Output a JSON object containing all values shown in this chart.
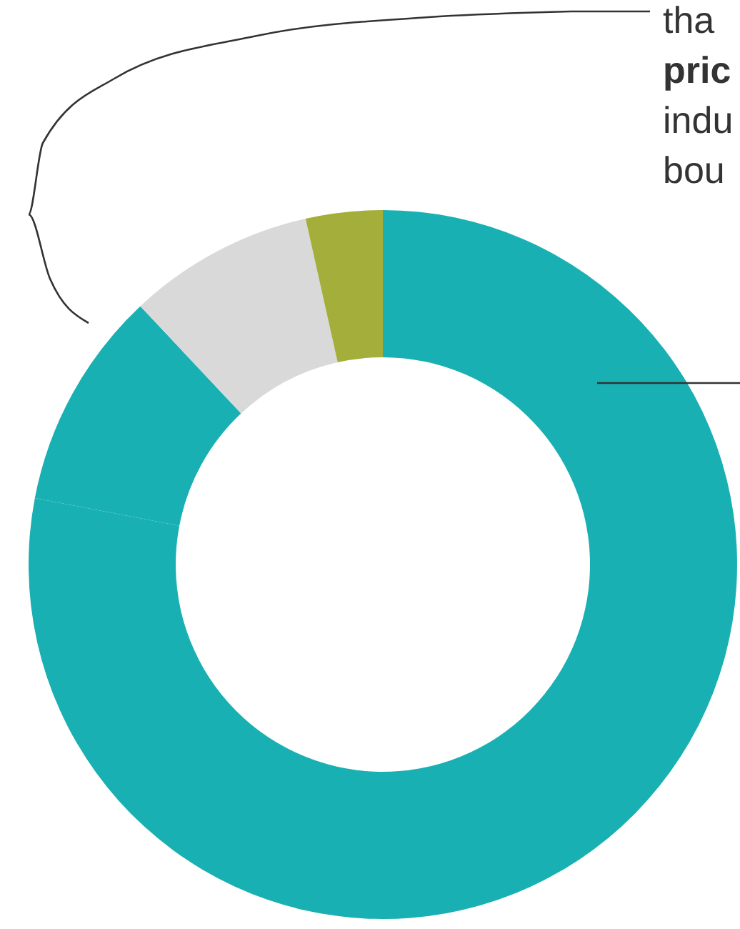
{
  "chart_data": {
    "type": "donut",
    "categories": [
      null,
      null,
      null,
      null
    ],
    "values": [
      78,
      10,
      8.5,
      3.5
    ],
    "colors": [
      "#19b0b3",
      "#19b0b3",
      "#d9d9d9",
      "#a3ae3b"
    ],
    "annotations": [
      "tha",
      "pric",
      "indu",
      "bou"
    ]
  }
}
